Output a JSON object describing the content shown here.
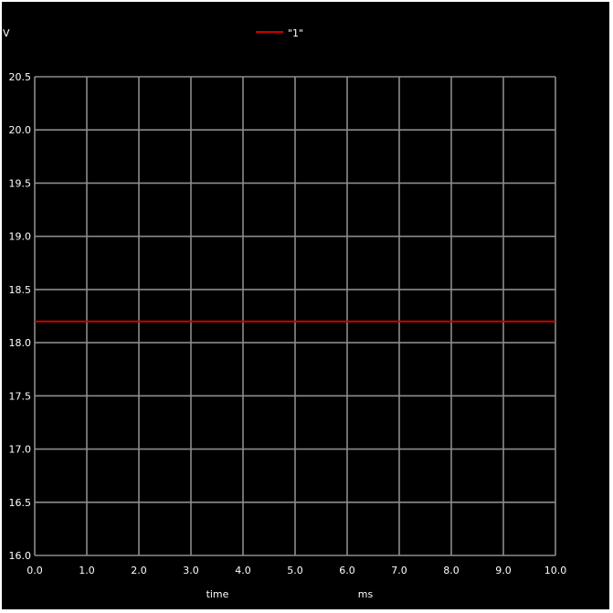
{
  "chart_data": {
    "type": "line",
    "y_unit_label": "V",
    "x_label": "time",
    "x_unit_label": "ms",
    "xlim": [
      0,
      10
    ],
    "ylim": [
      16.0,
      20.5
    ],
    "x_ticks": [
      "0.0",
      "1.0",
      "2.0",
      "3.0",
      "4.0",
      "5.0",
      "6.0",
      "7.0",
      "8.0",
      "9.0",
      "10.0"
    ],
    "y_ticks": [
      "16.0",
      "16.5",
      "17.0",
      "17.5",
      "18.0",
      "18.5",
      "19.0",
      "19.5",
      "20.0",
      "20.5"
    ],
    "grid": true,
    "legend_position": "top-center",
    "series": [
      {
        "name": "\"1\"",
        "color": "#cc0000",
        "x": [
          0,
          10
        ],
        "y": [
          18.2,
          18.2
        ]
      }
    ]
  },
  "colors": {
    "background": "#000000",
    "grid": "#8c8c8c",
    "text": "#ffffff"
  }
}
